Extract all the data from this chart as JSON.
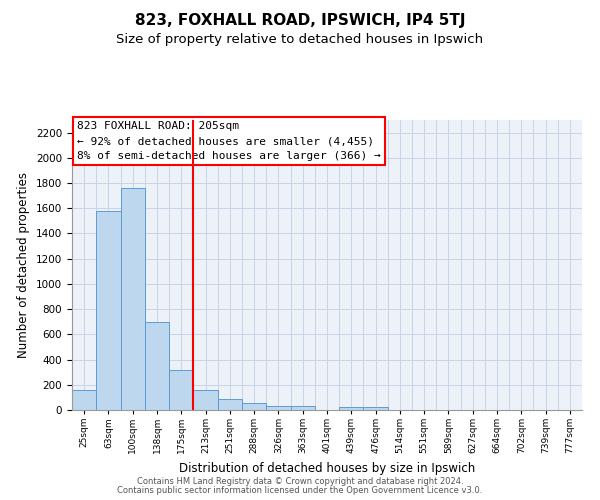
{
  "title": "823, FOXHALL ROAD, IPSWICH, IP4 5TJ",
  "subtitle": "Size of property relative to detached houses in Ipswich",
  "xlabel": "Distribution of detached houses by size in Ipswich",
  "ylabel": "Number of detached properties",
  "footer_line1": "Contains HM Land Registry data © Crown copyright and database right 2024.",
  "footer_line2": "Contains public sector information licensed under the Open Government Licence v3.0.",
  "bin_labels": [
    "25sqm",
    "63sqm",
    "100sqm",
    "138sqm",
    "175sqm",
    "213sqm",
    "251sqm",
    "288sqm",
    "326sqm",
    "363sqm",
    "401sqm",
    "439sqm",
    "476sqm",
    "514sqm",
    "551sqm",
    "589sqm",
    "627sqm",
    "664sqm",
    "702sqm",
    "739sqm",
    "777sqm"
  ],
  "bar_values": [
    160,
    1580,
    1760,
    700,
    320,
    160,
    90,
    55,
    35,
    35,
    0,
    20,
    20,
    0,
    0,
    0,
    0,
    0,
    0,
    0,
    0
  ],
  "bar_color": "#bdd7ee",
  "bar_edge_color": "#5b9bd5",
  "ylim": [
    0,
    2300
  ],
  "yticks": [
    0,
    200,
    400,
    600,
    800,
    1000,
    1200,
    1400,
    1600,
    1800,
    2000,
    2200
  ],
  "red_line_bin_index": 5,
  "annotation_line1": "823 FOXHALL ROAD: 205sqm",
  "annotation_line2": "← 92% of detached houses are smaller (4,455)",
  "annotation_line3": "8% of semi-detached houses are larger (366) →",
  "background_color": "#edf2f9",
  "grid_color": "#c8d4e8",
  "title_fontsize": 11,
  "subtitle_fontsize": 9.5
}
